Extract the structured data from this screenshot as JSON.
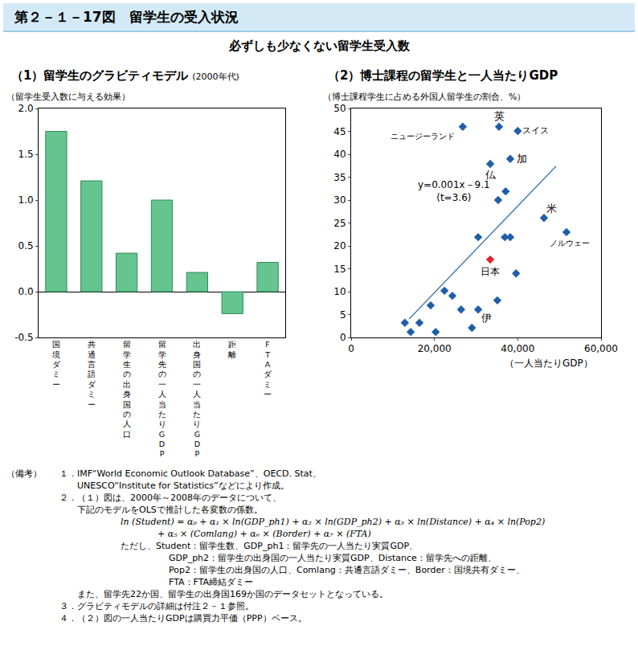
{
  "figure_title": "第２－１－17図　留学生の受入状況",
  "subtitle": "必ずしも少なくない留学生受入数",
  "chart_data": [
    {
      "type": "bar",
      "title": "（1）留学生のグラビティモデル",
      "subtitle": "(2000年代)",
      "ylabel": "（留学生受入数に与える効果）",
      "categories": [
        "国境ダミー",
        "共通言語ダミー",
        "留学生の出身国の人口",
        "留学先の一人当たりGDP",
        "出身国の一人当たりGDP",
        "距離",
        "FTAダミー"
      ],
      "values": [
        1.75,
        1.21,
        0.42,
        1.0,
        0.21,
        -0.24,
        0.32
      ],
      "color": "#66c48f",
      "ylim": [
        -0.5,
        2.0
      ],
      "yticks": [
        -0.5,
        {
          "value": 0,
          "label": "0.0"
        },
        0.5,
        {
          "value": 1,
          "label": "1.0"
        },
        1.5,
        {
          "value": 2,
          "label": "2.0"
        }
      ],
      "grid": false
    },
    {
      "type": "scatter",
      "title": "（2）博士課程の留学生と一人当たりGDP",
      "ylabel": "（博士課程学生に占める外国人留学生の割合、%）",
      "xlabel": "（一人当たりGDP）",
      "x": [
        26800,
        35500,
        40000,
        38200,
        33400,
        37100,
        35300,
        46300,
        51700,
        30500,
        36900,
        38200,
        33400,
        39600,
        22400,
        24300,
        19100,
        35100,
        26400,
        30500,
        29000,
        12900,
        16400,
        14300,
        20300
      ],
      "values": [
        46.0,
        46.0,
        45.1,
        39.0,
        37.9,
        31.9,
        30.0,
        26.1,
        23.0,
        21.9,
        21.9,
        21.9,
        17.0,
        14.0,
        10.2,
        9.1,
        7.0,
        8.1,
        6.1,
        6.1,
        2.1,
        3.2,
        3.2,
        1.2,
        1.2
      ],
      "labels": [
        "ニュージーランド",
        "英",
        "スイス",
        "加",
        "仏",
        null,
        null,
        "米",
        "ノルウェー",
        null,
        null,
        null,
        "日本",
        null,
        null,
        null,
        null,
        null,
        null,
        "伊",
        null,
        null,
        null,
        null,
        null
      ],
      "colors": [
        "#1f5fa8",
        "#1f5fa8",
        "#1f5fa8",
        "#1f5fa8",
        "#1f5fa8",
        "#1f5fa8",
        "#1f5fa8",
        "#1f5fa8",
        "#1f5fa8",
        "#1f5fa8",
        "#1f5fa8",
        "#1f5fa8",
        "#e8202a",
        "#1f5fa8",
        "#1f5fa8",
        "#1f5fa8",
        "#1f5fa8",
        "#1f5fa8",
        "#1f5fa8",
        "#1f5fa8",
        "#1f5fa8",
        "#1f5fa8",
        "#1f5fa8",
        "#1f5fa8",
        "#1f5fa8"
      ],
      "marker": "diamond",
      "trend_line": {
        "x": [
          13900,
          49200
        ],
        "values": [
          4.0,
          37.4
        ],
        "color": "#1f5fa8"
      },
      "equation": [
        "y=0.001x－9.1",
        "(t=3.6)"
      ],
      "xlim": [
        0,
        60000
      ],
      "xticks": [
        0,
        {
          "value": 20000,
          "label": "20,000"
        },
        {
          "value": 40000,
          "label": "40,000"
        },
        {
          "value": 60000,
          "label": "60,000"
        }
      ],
      "ylim": [
        0,
        50
      ],
      "yticks": [
        0,
        5,
        10,
        15,
        20,
        25,
        30,
        35,
        40,
        45,
        50
      ],
      "grid": false
    }
  ],
  "notes": {
    "label": "（備考）",
    "items": [
      {
        "num": "１．",
        "lines": [
          "IMF“World Economic Outlook Database”、OECD. Stat、",
          "UNESCO“Institute for Statistics”などにより作成。"
        ]
      },
      {
        "num": "２．",
        "lines": [
          "（１）図は、2000年～2008年のデータについて、",
          "下記のモデルをOLSで推計した各変数の係数。"
        ],
        "formula": [
          "ln (Student) = α₀ + α₁ × ln(GDP_ph1) + α₂ × ln(GDP_ph2) + α₃ × ln(Distance) + α₄ × ln(Pop2)",
          "+ α₅ × (Comlang) + α₆ × (Border) + α₇ × (FTA)"
        ],
        "definitions": [
          "ただし、Student：留学生数、GDP_ph1：留学先の一人当たり実質GDP、",
          "GDP_ph2：留学生の出身国の一人当たり実質GDP、Distance：留学先への距離、",
          "Pop2：留学生の出身国の人口、Comlang：共通言語ダミー、Border：国境共有ダミー、",
          "FTA：FTA締結ダミー"
        ],
        "after": [
          "また、留学先22か国、留学生の出身国169か国のデータセットとなっている。"
        ]
      },
      {
        "num": "３．",
        "lines": [
          "グラビティモデルの詳細は付注２－１参照。"
        ]
      },
      {
        "num": "４．",
        "lines": [
          "（２）図の一人当たりGDPは購買力平価（PPP）ベース。"
        ]
      }
    ]
  }
}
